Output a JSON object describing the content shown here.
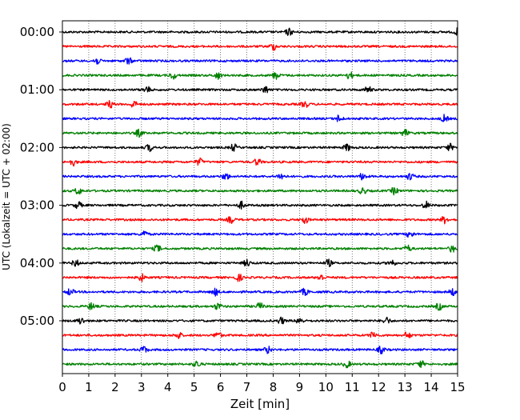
{
  "chart_data": {
    "type": "line",
    "title": "",
    "xlabel": "Zeit  [min]",
    "ylabel": "UTC (Lokalzeit = UTC + 02:00)",
    "xlim": [
      0,
      15
    ],
    "x_ticks": [
      "0",
      "1",
      "2",
      "3",
      "4",
      "5",
      "6",
      "7",
      "8",
      "9",
      "10",
      "11",
      "12",
      "13",
      "14",
      "15"
    ],
    "y_ticks": [
      "00:00",
      "01:00",
      "02:00",
      "03:00",
      "04:00",
      "05:00"
    ],
    "grid": "vertical dotted at every minute",
    "trace_interval_minutes": 15,
    "trace_color_cycle": [
      "#000000",
      "#ff0000",
      "#0000ff",
      "#008000"
    ],
    "traces": [
      {
        "start": "00:00",
        "color": "#000000",
        "bursts": [
          8.6,
          15.0
        ]
      },
      {
        "start": "00:15",
        "color": "#ff0000",
        "bursts": [
          8.0
        ]
      },
      {
        "start": "00:30",
        "color": "#0000ff",
        "bursts": [
          1.3,
          2.5
        ]
      },
      {
        "start": "00:45",
        "color": "#008000",
        "bursts": [
          4.2,
          5.9,
          8.1,
          10.9
        ]
      },
      {
        "start": "01:00",
        "color": "#000000",
        "bursts": [
          3.2,
          7.7,
          11.6
        ]
      },
      {
        "start": "01:15",
        "color": "#ff0000",
        "bursts": [
          1.8,
          2.7,
          9.2
        ]
      },
      {
        "start": "01:30",
        "color": "#0000ff",
        "bursts": [
          10.5,
          14.5
        ]
      },
      {
        "start": "01:45",
        "color": "#008000",
        "bursts": [
          2.9,
          13.0
        ]
      },
      {
        "start": "02:00",
        "color": "#000000",
        "bursts": [
          3.3,
          6.5,
          10.8,
          14.7
        ]
      },
      {
        "start": "02:15",
        "color": "#ff0000",
        "bursts": [
          0.4,
          5.2,
          7.4
        ]
      },
      {
        "start": "02:30",
        "color": "#0000ff",
        "bursts": [
          6.2,
          8.3,
          11.4,
          13.2
        ]
      },
      {
        "start": "02:45",
        "color": "#008000",
        "bursts": [
          0.6,
          11.4,
          12.6
        ]
      },
      {
        "start": "03:00",
        "color": "#000000",
        "bursts": [
          0.6,
          6.8,
          13.8
        ]
      },
      {
        "start": "03:15",
        "color": "#ff0000",
        "bursts": [
          6.4,
          9.2,
          14.5
        ]
      },
      {
        "start": "03:30",
        "color": "#0000ff",
        "bursts": [
          3.1,
          13.2
        ]
      },
      {
        "start": "03:45",
        "color": "#008000",
        "bursts": [
          3.6,
          13.1,
          14.8
        ]
      },
      {
        "start": "04:00",
        "color": "#000000",
        "bursts": [
          0.5,
          7.0,
          10.1,
          12.5
        ]
      },
      {
        "start": "04:15",
        "color": "#ff0000",
        "bursts": [
          3.0,
          6.7,
          9.8
        ]
      },
      {
        "start": "04:30",
        "color": "#0000ff",
        "bursts": [
          0.3,
          5.8,
          9.2,
          14.8
        ]
      },
      {
        "start": "04:45",
        "color": "#008000",
        "bursts": [
          1.1,
          5.9,
          7.5,
          14.3
        ]
      },
      {
        "start": "05:00",
        "color": "#000000",
        "bursts": [
          0.7,
          8.3,
          9.0,
          12.3
        ]
      },
      {
        "start": "05:15",
        "color": "#ff0000",
        "bursts": [
          4.4,
          5.9,
          11.8,
          13.1
        ]
      },
      {
        "start": "05:30",
        "color": "#0000ff",
        "bursts": [
          3.1,
          7.8,
          12.1
        ]
      },
      {
        "start": "05:45",
        "color": "#008000",
        "bursts": [
          5.1,
          10.8,
          13.6
        ]
      }
    ]
  }
}
